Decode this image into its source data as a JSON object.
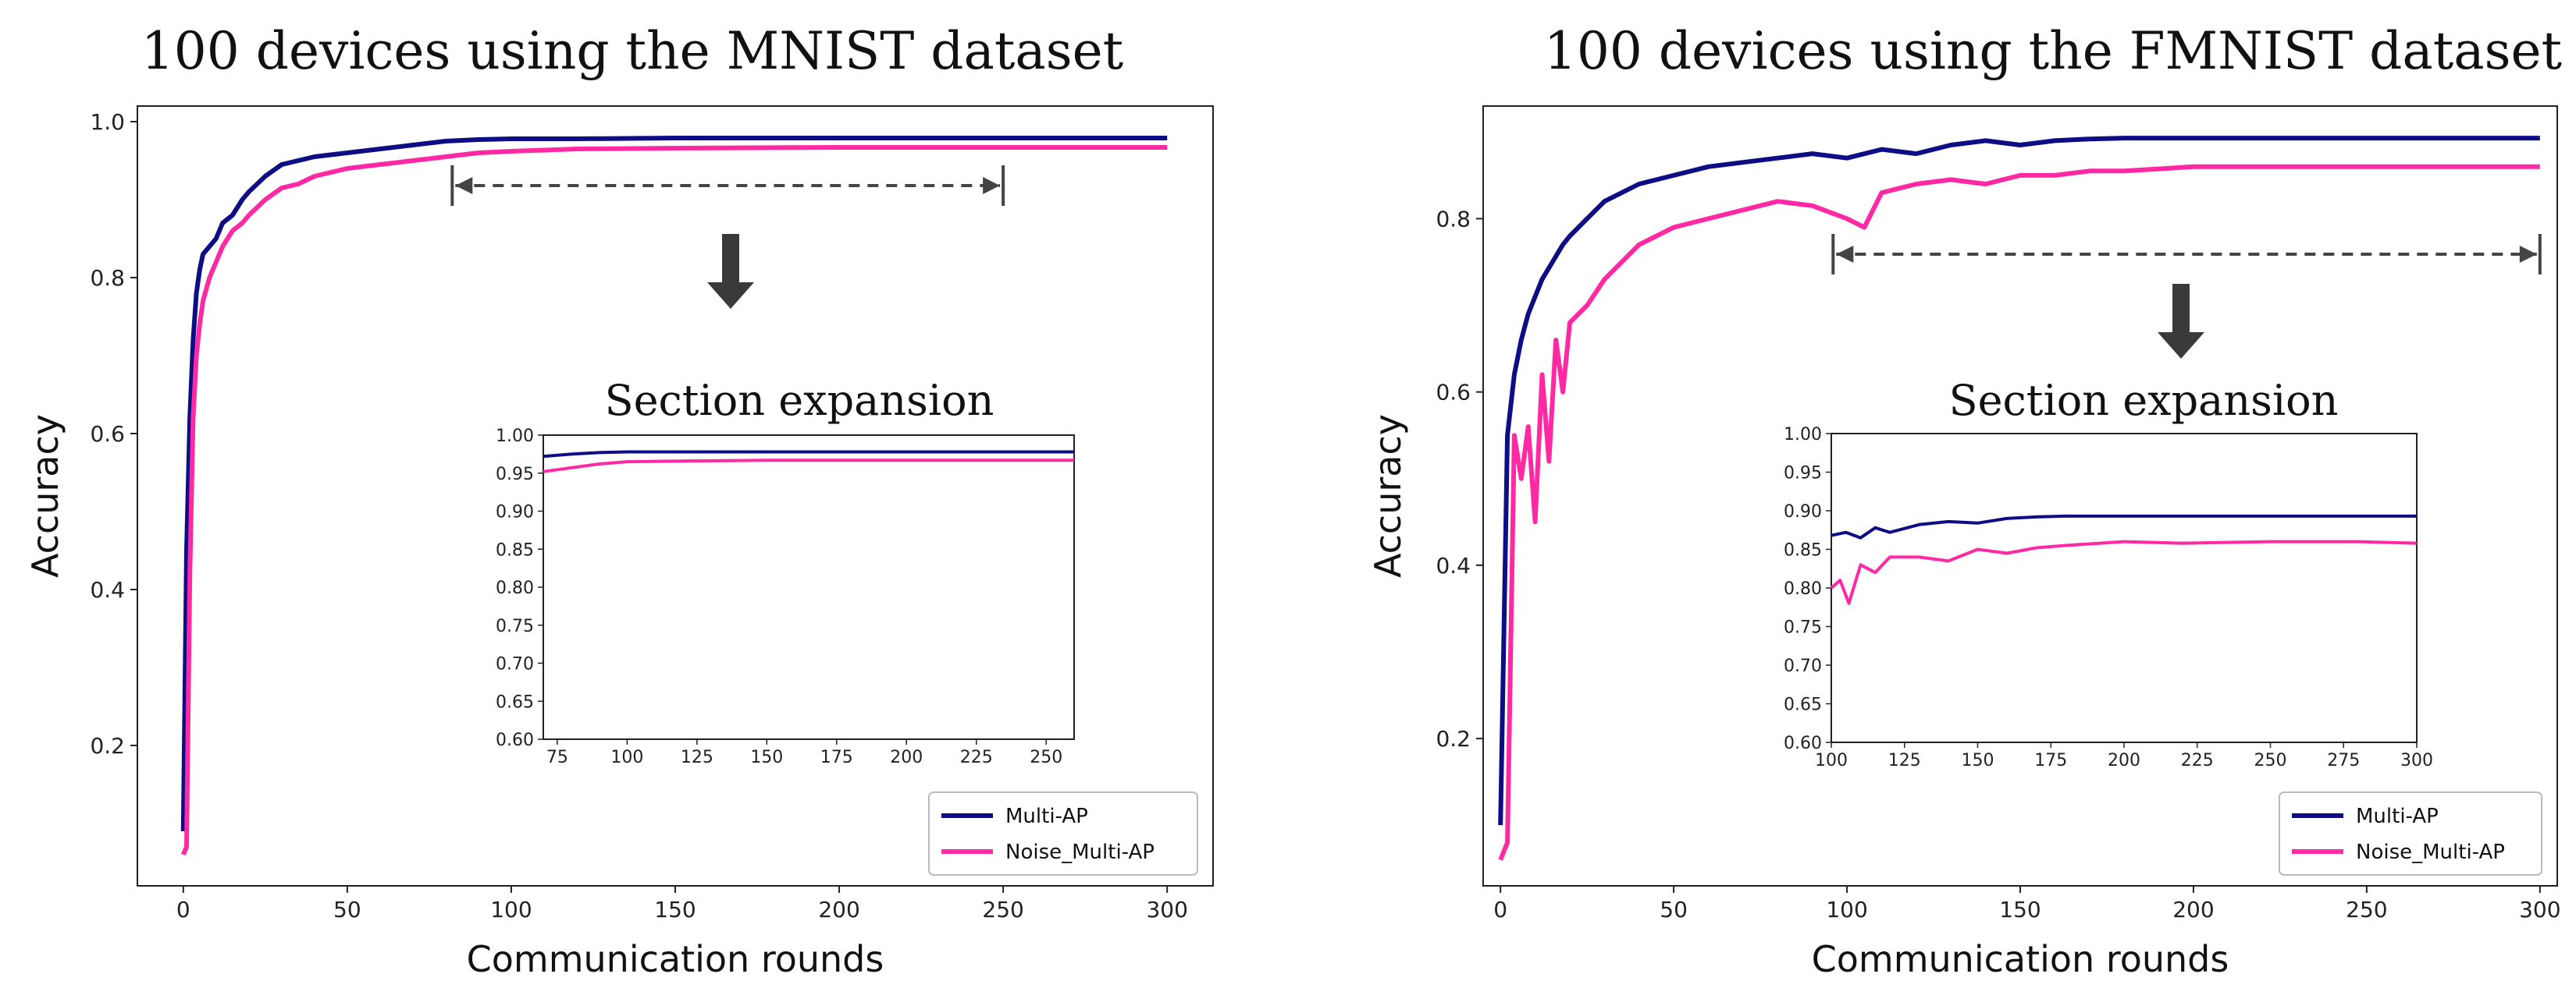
{
  "chart_data": [
    {
      "type": "line",
      "title": "100 devices using the MNIST dataset",
      "xlabel": "Communication rounds",
      "ylabel": "Accuracy",
      "xlim": [
        -14,
        314
      ],
      "ylim": [
        0.02,
        1.02
      ],
      "xticks": [
        "0",
        "50",
        "100",
        "150",
        "200",
        "250",
        "300"
      ],
      "yticks": [
        "0.2",
        "0.4",
        "0.6",
        "0.8",
        "1.0"
      ],
      "legend_position": "bottom-right",
      "series": [
        {
          "name": "Multi-AP",
          "color": "#0d0d85",
          "x": [
            0,
            1,
            2,
            3,
            4,
            5,
            6,
            8,
            10,
            12,
            15,
            18,
            20,
            25,
            30,
            35,
            40,
            50,
            60,
            70,
            80,
            90,
            100,
            120,
            150,
            200,
            250,
            300
          ],
          "y": [
            0.09,
            0.45,
            0.62,
            0.72,
            0.78,
            0.81,
            0.83,
            0.84,
            0.85,
            0.87,
            0.88,
            0.9,
            0.91,
            0.93,
            0.945,
            0.95,
            0.955,
            0.96,
            0.965,
            0.97,
            0.975,
            0.977,
            0.978,
            0.978,
            0.979,
            0.979,
            0.979,
            0.979
          ]
        },
        {
          "name": "Noise_Multi-AP",
          "color": "#ff2aa3",
          "x": [
            0,
            1,
            2,
            3,
            4,
            5,
            6,
            8,
            10,
            12,
            15,
            18,
            20,
            25,
            30,
            35,
            40,
            50,
            60,
            70,
            80,
            90,
            100,
            120,
            150,
            200,
            250,
            300
          ],
          "y": [
            0.06,
            0.07,
            0.42,
            0.62,
            0.7,
            0.74,
            0.77,
            0.8,
            0.82,
            0.84,
            0.86,
            0.87,
            0.88,
            0.9,
            0.915,
            0.92,
            0.93,
            0.94,
            0.945,
            0.95,
            0.955,
            0.96,
            0.962,
            0.965,
            0.966,
            0.967,
            0.967,
            0.967
          ]
        }
      ],
      "annotation": {
        "range": [
          82,
          250
        ],
        "arrow": "down"
      },
      "inset": {
        "title": "Section expansion",
        "xlim": [
          70,
          260
        ],
        "ylim": [
          0.6,
          1.0
        ],
        "xticks": [
          "75",
          "100",
          "125",
          "150",
          "175",
          "200",
          "225",
          "250"
        ],
        "yticks": [
          "0.60",
          "0.65",
          "0.70",
          "0.75",
          "0.80",
          "0.85",
          "0.90",
          "0.95",
          "1.00"
        ],
        "series": [
          {
            "name": "Multi-AP",
            "x": [
              70,
              80,
              90,
              100,
              120,
              150,
              200,
              260
            ],
            "y": [
              0.972,
              0.975,
              0.977,
              0.978,
              0.978,
              0.978,
              0.978,
              0.978
            ]
          },
          {
            "name": "Noise_Multi-AP",
            "x": [
              70,
              80,
              90,
              100,
              120,
              150,
              200,
              260
            ],
            "y": [
              0.952,
              0.957,
              0.962,
              0.965,
              0.966,
              0.967,
              0.967,
              0.967
            ]
          }
        ]
      }
    },
    {
      "type": "line",
      "title": "100 devices using the FMNIST dataset",
      "xlabel": "Communication rounds",
      "ylabel": "Accuracy",
      "xlim": [
        -5,
        305
      ],
      "ylim": [
        0.03,
        0.93
      ],
      "xticks": [
        "0",
        "50",
        "100",
        "150",
        "200",
        "250",
        "300"
      ],
      "yticks": [
        "0.2",
        "0.4",
        "0.6",
        "0.8"
      ],
      "legend_position": "bottom-right",
      "series": [
        {
          "name": "Multi-AP",
          "color": "#0d0d85",
          "x": [
            0,
            2,
            4,
            6,
            8,
            10,
            12,
            15,
            18,
            20,
            25,
            30,
            40,
            50,
            60,
            70,
            80,
            90,
            100,
            110,
            120,
            130,
            140,
            150,
            160,
            170,
            180,
            200,
            250,
            300
          ],
          "y": [
            0.1,
            0.55,
            0.62,
            0.66,
            0.69,
            0.71,
            0.73,
            0.75,
            0.77,
            0.78,
            0.8,
            0.82,
            0.84,
            0.85,
            0.86,
            0.865,
            0.87,
            0.875,
            0.87,
            0.88,
            0.875,
            0.885,
            0.89,
            0.885,
            0.89,
            0.892,
            0.893,
            0.893,
            0.893,
            0.893
          ]
        },
        {
          "name": "Noise_Multi-AP",
          "color": "#ff2aa3",
          "x": [
            0,
            2,
            4,
            6,
            8,
            10,
            12,
            14,
            16,
            18,
            20,
            25,
            30,
            35,
            40,
            50,
            60,
            70,
            80,
            90,
            100,
            105,
            110,
            120,
            130,
            140,
            150,
            160,
            170,
            180,
            200,
            220,
            250,
            280,
            300
          ],
          "y": [
            0.06,
            0.08,
            0.55,
            0.5,
            0.56,
            0.45,
            0.62,
            0.52,
            0.66,
            0.6,
            0.68,
            0.7,
            0.73,
            0.75,
            0.77,
            0.79,
            0.8,
            0.81,
            0.82,
            0.815,
            0.8,
            0.79,
            0.83,
            0.84,
            0.845,
            0.84,
            0.85,
            0.85,
            0.855,
            0.855,
            0.86,
            0.86,
            0.86,
            0.86,
            0.86
          ]
        }
      ],
      "annotation": {
        "range": [
          96,
          300
        ],
        "arrow": "down"
      },
      "inset": {
        "title": "Section expansion",
        "xlim": [
          100,
          300
        ],
        "ylim": [
          0.6,
          1.0
        ],
        "xticks": [
          "100",
          "125",
          "150",
          "175",
          "200",
          "225",
          "250",
          "275",
          "300"
        ],
        "yticks": [
          "0.60",
          "0.65",
          "0.70",
          "0.75",
          "0.80",
          "0.85",
          "0.90",
          "0.95",
          "1.00"
        ],
        "series": [
          {
            "name": "Multi-AP",
            "x": [
              100,
              105,
              110,
              115,
              120,
              130,
              140,
              150,
              160,
              170,
              180,
              200,
              250,
              300
            ],
            "y": [
              0.868,
              0.872,
              0.865,
              0.878,
              0.872,
              0.882,
              0.886,
              0.884,
              0.89,
              0.892,
              0.893,
              0.893,
              0.893,
              0.893
            ]
          },
          {
            "name": "Noise_Multi-AP",
            "x": [
              100,
              103,
              106,
              110,
              115,
              120,
              130,
              140,
              150,
              160,
              170,
              180,
              200,
              220,
              250,
              280,
              300
            ],
            "y": [
              0.8,
              0.81,
              0.78,
              0.83,
              0.82,
              0.84,
              0.84,
              0.835,
              0.85,
              0.845,
              0.852,
              0.855,
              0.86,
              0.858,
              0.86,
              0.86,
              0.858
            ]
          }
        ]
      }
    }
  ]
}
